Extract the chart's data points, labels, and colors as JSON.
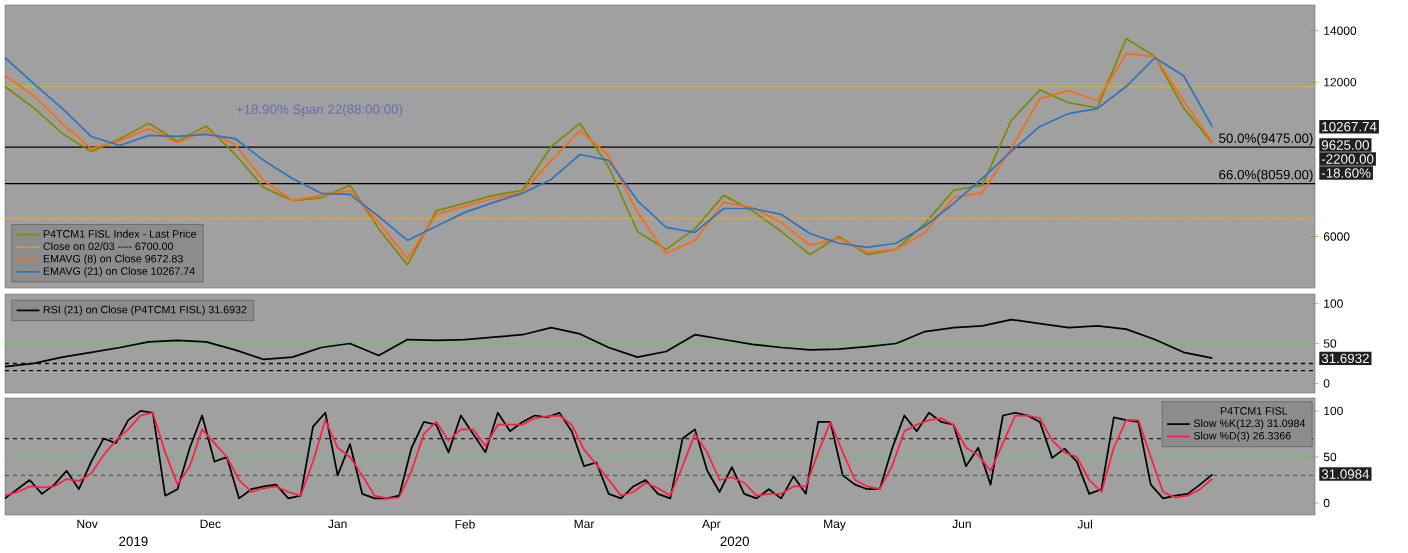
{
  "chart_data": [
    {
      "type": "line",
      "xlim": [
        "2019-10-26",
        "2020-09-09"
      ],
      "ylim": [
        4000,
        15000
      ],
      "yticks": [
        6000,
        {
          "value": 8000,
          "label": null
        },
        {
          "value": 10000,
          "label": null
        },
        12000,
        14000
      ],
      "tick_labels": "y",
      "legend": "bottom left",
      "x": [
        "2019-10-26",
        "2019-11-02",
        "2019-11-09",
        "2019-11-16",
        "2019-11-23",
        "2019-11-30",
        "2019-12-07",
        "2019-12-14",
        "2019-12-21",
        "2019-12-28",
        "2020-01-04",
        "2020-01-11",
        "2020-01-18",
        "2020-01-25",
        "2020-02-01",
        "2020-02-08",
        "2020-02-15",
        "2020-02-22",
        "2020-02-29",
        "2020-03-07",
        "2020-03-14",
        "2020-03-21",
        "2020-03-28",
        "2020-04-04",
        "2020-04-11",
        "2020-04-18",
        "2020-04-25",
        "2020-05-02",
        "2020-05-09",
        "2020-05-16",
        "2020-05-23",
        "2020-05-30",
        "2020-06-06",
        "2020-06-13",
        "2020-06-20",
        "2020-06-27",
        "2020-07-04",
        "2020-07-11",
        "2020-07-18",
        "2020-07-25",
        "2020-08-01",
        "2020-08-08",
        "2020-08-15"
      ],
      "series": [
        {
          "name": "P4TCM1 FISL Index - Last Price",
          "color": "#7f8a00",
          "values": [
            11830,
            11000,
            10000,
            9300,
            9800,
            10400,
            9700,
            10300,
            9200,
            7900,
            7400,
            7500,
            8000,
            6300,
            4900,
            7000,
            7300,
            7600,
            7800,
            9500,
            10400,
            8700,
            6200,
            5500,
            6300,
            7600,
            7000,
            6200,
            5300,
            6000,
            5300,
            5500,
            6500,
            7800,
            8000,
            10500,
            11700,
            11200,
            11000,
            13700,
            13000,
            11000,
            9625
          ]
        },
        {
          "name": "Close on 02/03 ---- 6700.00",
          "color": "#f5a623",
          "line_style": "dotted",
          "x": [
            "2019-10-26",
            "2020-09-09"
          ],
          "values": [
            6700,
            6700
          ]
        },
        {
          "name": "EMAVG (8)  on Close 9672.83",
          "color": "#ff6a10",
          "values": [
            12250,
            11480,
            10390,
            9420,
            9730,
            10200,
            9650,
            10120,
            9580,
            8180,
            7400,
            7600,
            7790,
            6550,
            5150,
            6860,
            7170,
            7480,
            7710,
            8960,
            10120,
            9150,
            6940,
            5350,
            5850,
            7330,
            7130,
            6550,
            5660,
            5930,
            5390,
            5500,
            6160,
            7520,
            7710,
            9420,
            11360,
            11670,
            11280,
            13110,
            12990,
            11280,
            9672.83
          ]
        },
        {
          "name": "EMAVG (21)  on Close 10267.74",
          "color": "#2f74c0",
          "values": [
            12950,
            11940,
            10970,
            9890,
            9540,
            9930,
            9890,
            9970,
            9810,
            8960,
            8260,
            7680,
            7640,
            6780,
            5850,
            6400,
            6940,
            7330,
            7680,
            8220,
            9190,
            8960,
            7400,
            6360,
            6160,
            7090,
            7090,
            6860,
            6120,
            5740,
            5580,
            5740,
            6400,
            7290,
            8260,
            9310,
            10280,
            10780,
            10970,
            11830,
            12950,
            12250,
            10267.74
          ]
        }
      ],
      "ref_lines": [
        {
          "axis": "y",
          "value": 11830,
          "color": "#e8d000",
          "line_style": "dotted"
        },
        {
          "axis": "y",
          "value": 9475,
          "label": "50.0%(9475.00)",
          "color": "#000000"
        },
        {
          "axis": "y",
          "value": 8059,
          "label": "66.0%(8059.00)",
          "color": "#000000"
        }
      ],
      "annotations": [
        "+18.90% Span 22(88:00:00)",
        "10267.74",
        "9625.00",
        "-2200.00",
        "-18.60%"
      ]
    },
    {
      "type": "line",
      "xlim": [
        "2019-10-26",
        "2020-09-09"
      ],
      "ylim": [
        -12,
        112
      ],
      "yticks": [
        0,
        50,
        100
      ],
      "tick_labels": "y",
      "legend": "top left",
      "x": [
        "2019-10-26",
        "2019-11-02",
        "2019-11-09",
        "2019-11-16",
        "2019-11-23",
        "2019-11-30",
        "2019-12-07",
        "2019-12-14",
        "2019-12-21",
        "2019-12-28",
        "2020-01-04",
        "2020-01-11",
        "2020-01-18",
        "2020-01-25",
        "2020-02-01",
        "2020-02-08",
        "2020-02-15",
        "2020-02-22",
        "2020-02-29",
        "2020-03-07",
        "2020-03-14",
        "2020-03-21",
        "2020-03-28",
        "2020-04-04",
        "2020-04-11",
        "2020-04-18",
        "2020-04-25",
        "2020-05-02",
        "2020-05-09",
        "2020-05-16",
        "2020-05-23",
        "2020-05-30",
        "2020-06-06",
        "2020-06-13",
        "2020-06-20",
        "2020-06-27",
        "2020-07-04",
        "2020-07-11",
        "2020-07-18",
        "2020-07-25",
        "2020-08-01",
        "2020-08-08",
        "2020-08-15"
      ],
      "series": [
        {
          "name": "RSI (21)  on Close (P4TCM1 FISL) 31.6932",
          "color": "#000000",
          "values": [
            21,
            25,
            33,
            39,
            45,
            52,
            54,
            52,
            42,
            30,
            33,
            45,
            50,
            35,
            55,
            54,
            55,
            58,
            61,
            70,
            62,
            45,
            33,
            40,
            61,
            55,
            49,
            45,
            42,
            43,
            46,
            50,
            65,
            70,
            72,
            80,
            75,
            70,
            72,
            68,
            55,
            39,
            31.6932
          ]
        }
      ],
      "ref_lines": [
        {
          "axis": "y",
          "value": 50,
          "color": "#40e040"
        },
        {
          "axis": "y",
          "value": 25,
          "color": "#000000",
          "line_style": "dashed"
        },
        {
          "axis": "y",
          "value": 16,
          "color": "#000000",
          "line_style": "dashed"
        }
      ],
      "annotations": [
        "31.6932"
      ]
    },
    {
      "type": "line",
      "xlim": [
        "2019-10-26",
        "2020-09-09"
      ],
      "ylim": [
        -13,
        114
      ],
      "yticks": [
        0,
        50,
        100
      ],
      "xticks": [
        {
          "value": "2019-11-15",
          "label": "Nov"
        },
        {
          "value": "2019-12-15",
          "label": "Dec"
        },
        {
          "value": "2020-01-15",
          "label": "Jan"
        },
        {
          "value": "2020-02-15",
          "label": "Feb"
        },
        {
          "value": "2020-03-15",
          "label": "Mar"
        },
        {
          "value": "2020-04-15",
          "label": "Apr"
        },
        {
          "value": "2020-05-15",
          "label": "May"
        },
        {
          "value": "2020-06-15",
          "label": "Jun"
        },
        {
          "value": "2020-07-15",
          "label": "Jul"
        }
      ],
      "legend": "top right",
      "legend_title": "P4TCM1 FISL",
      "x": [
        "2019-10-26",
        "2019-10-29",
        "2019-11-01",
        "2019-11-04",
        "2019-11-07",
        "2019-11-10",
        "2019-11-13",
        "2019-11-16",
        "2019-11-19",
        "2019-11-22",
        "2019-11-25",
        "2019-11-28",
        "2019-12-01",
        "2019-12-04",
        "2019-12-07",
        "2019-12-10",
        "2019-12-13",
        "2019-12-16",
        "2019-12-19",
        "2019-12-22",
        "2019-12-25",
        "2019-12-28",
        "2019-12-31",
        "2020-01-03",
        "2020-01-06",
        "2020-01-09",
        "2020-01-12",
        "2020-01-15",
        "2020-01-18",
        "2020-01-21",
        "2020-01-24",
        "2020-01-27",
        "2020-01-30",
        "2020-02-02",
        "2020-02-05",
        "2020-02-08",
        "2020-02-11",
        "2020-02-14",
        "2020-02-17",
        "2020-02-20",
        "2020-02-23",
        "2020-02-26",
        "2020-02-29",
        "2020-03-03",
        "2020-03-06",
        "2020-03-09",
        "2020-03-12",
        "2020-03-15",
        "2020-03-18",
        "2020-03-21",
        "2020-03-24",
        "2020-03-27",
        "2020-03-30",
        "2020-04-02",
        "2020-04-05",
        "2020-04-08",
        "2020-04-11",
        "2020-04-14",
        "2020-04-17",
        "2020-04-20",
        "2020-04-23",
        "2020-04-26",
        "2020-04-29",
        "2020-05-02",
        "2020-05-05",
        "2020-05-08",
        "2020-05-11",
        "2020-05-14",
        "2020-05-17",
        "2020-05-20",
        "2020-05-23",
        "2020-05-26",
        "2020-05-29",
        "2020-06-01",
        "2020-06-04",
        "2020-06-07",
        "2020-06-10",
        "2020-06-13",
        "2020-06-16",
        "2020-06-19",
        "2020-06-22",
        "2020-06-25",
        "2020-06-28",
        "2020-07-01",
        "2020-07-04",
        "2020-07-07",
        "2020-07-10",
        "2020-07-13",
        "2020-07-16",
        "2020-07-19",
        "2020-07-22",
        "2020-07-25",
        "2020-07-28",
        "2020-07-31",
        "2020-08-03",
        "2020-08-06",
        "2020-08-09",
        "2020-08-12",
        "2020-08-15"
      ],
      "series": [
        {
          "name": "Slow %K(12,3) 31.0984",
          "color": "#000000",
          "values": [
            5,
            15,
            25,
            10,
            20,
            35,
            15,
            45,
            70,
            65,
            90,
            100,
            98,
            8,
            15,
            60,
            95,
            45,
            50,
            5,
            15,
            18,
            20,
            5,
            8,
            83,
            98,
            30,
            64,
            10,
            5,
            5,
            8,
            60,
            88,
            85,
            55,
            95,
            75,
            55,
            98,
            78,
            88,
            95,
            93,
            98,
            78,
            40,
            44,
            10,
            5,
            18,
            25,
            10,
            5,
            70,
            80,
            35,
            12,
            39,
            10,
            5,
            15,
            5,
            29,
            10,
            88,
            88,
            30,
            20,
            15,
            15,
            59,
            95,
            78,
            98,
            88,
            85,
            40,
            60,
            20,
            95,
            98,
            95,
            88,
            49,
            59,
            45,
            10,
            15,
            93,
            90,
            88,
            20,
            5,
            8,
            10,
            20,
            31.0984
          ]
        },
        {
          "name": "Slow %D(3)   26.3366",
          "color": "#ff2040",
          "values": [
            8,
            12,
            18,
            17,
            18,
            26,
            24,
            32,
            52,
            68,
            80,
            95,
            98,
            55,
            20,
            40,
            80,
            65,
            50,
            25,
            12,
            16,
            18,
            12,
            8,
            45,
            90,
            60,
            50,
            30,
            8,
            5,
            6,
            35,
            75,
            88,
            68,
            80,
            80,
            62,
            85,
            85,
            85,
            92,
            94,
            95,
            85,
            58,
            42,
            25,
            8,
            12,
            22,
            16,
            8,
            40,
            75,
            55,
            25,
            28,
            22,
            8,
            10,
            10,
            18,
            18,
            55,
            88,
            55,
            25,
            18,
            15,
            40,
            78,
            85,
            90,
            92,
            85,
            60,
            52,
            35,
            65,
            95,
            95,
            92,
            68,
            55,
            50,
            25,
            12,
            60,
            90,
            90,
            50,
            12,
            6,
            8,
            15,
            26.3366
          ]
        }
      ],
      "ref_lines": [
        {
          "axis": "y",
          "value": 70,
          "color": "#202020",
          "line_style": "dashed"
        },
        {
          "axis": "y",
          "value": 50,
          "color": "#60c060",
          "line_style": "dotted"
        },
        {
          "axis": "y",
          "value": 30,
          "color": "#208020",
          "line_style": "dashed"
        }
      ],
      "annotations": [
        "31.0984",
        "2019",
        "2020"
      ]
    }
  ]
}
